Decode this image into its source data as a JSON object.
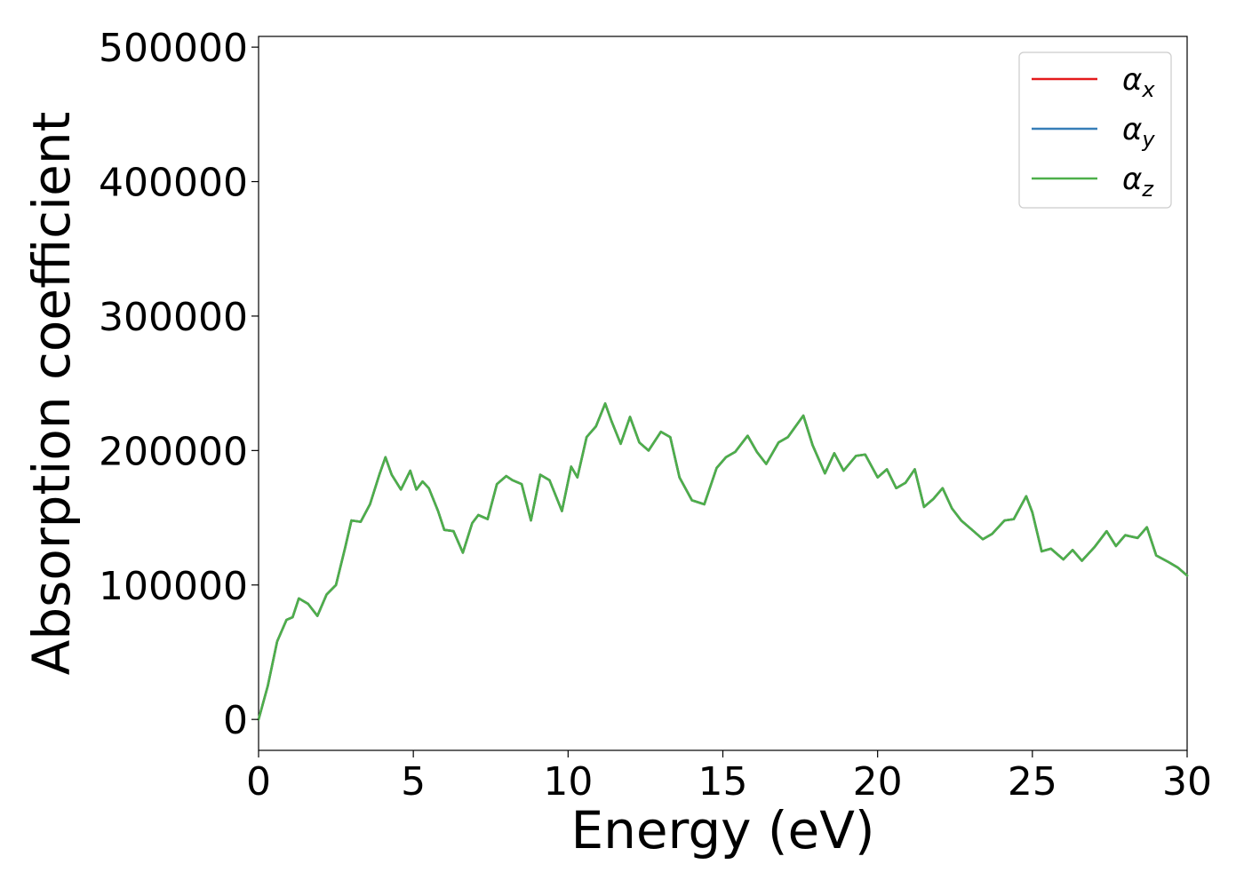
{
  "chart_data": {
    "type": "line",
    "title": "",
    "xlabel": "Energy (eV)",
    "ylabel": "Absorption coefficient",
    "xlim": [
      0,
      30
    ],
    "ylim": [
      -23000,
      508000
    ],
    "xticks": [
      0,
      5,
      10,
      15,
      20,
      25,
      30
    ],
    "xtick_labels": [
      "0",
      "5",
      "10",
      "15",
      "20",
      "25",
      "30"
    ],
    "yticks": [
      0,
      100000,
      200000,
      300000,
      400000,
      500000
    ],
    "ytick_labels": [
      "0",
      "100000",
      "200000",
      "300000",
      "400000",
      "500000"
    ],
    "grid": false,
    "legend_position": "top-right",
    "x": [
      0,
      0.3,
      0.6,
      0.9,
      1.1,
      1.3,
      1.6,
      1.9,
      2.2,
      2.5,
      2.8,
      3.0,
      3.3,
      3.6,
      3.9,
      4.1,
      4.3,
      4.6,
      4.9,
      5.1,
      5.3,
      5.5,
      5.8,
      6.0,
      6.3,
      6.6,
      6.9,
      7.1,
      7.4,
      7.7,
      8.0,
      8.2,
      8.5,
      8.8,
      9.1,
      9.4,
      9.8,
      10.1,
      10.3,
      10.6,
      10.9,
      11.2,
      11.4,
      11.7,
      12.0,
      12.3,
      12.6,
      13.0,
      13.3,
      13.6,
      14.0,
      14.4,
      14.8,
      15.1,
      15.4,
      15.8,
      16.1,
      16.4,
      16.8,
      17.1,
      17.6,
      17.9,
      18.3,
      18.6,
      18.9,
      19.3,
      19.6,
      20.0,
      20.3,
      20.6,
      20.9,
      21.2,
      21.5,
      21.8,
      22.1,
      22.4,
      22.7,
      23.1,
      23.4,
      23.7,
      24.1,
      24.4,
      24.8,
      25.0,
      25.3,
      25.6,
      26.0,
      26.3,
      26.6,
      27.0,
      27.4,
      27.7,
      28.0,
      28.4,
      28.7,
      29.0,
      29.4,
      29.7,
      30.0
    ],
    "series": [
      {
        "name": "α_x",
        "color": "#e41a1c",
        "y": [
          0,
          25000,
          58000,
          74000,
          76000,
          90000,
          86000,
          77000,
          93000,
          100000,
          128000,
          148000,
          147000,
          160000,
          182000,
          195000,
          182000,
          171000,
          185000,
          171000,
          177000,
          172000,
          155000,
          141000,
          140000,
          124000,
          146000,
          152000,
          149000,
          175000,
          181000,
          178000,
          175000,
          148000,
          182000,
          178000,
          155000,
          188000,
          180000,
          210000,
          218000,
          235000,
          222000,
          205000,
          225000,
          206000,
          200000,
          214000,
          210000,
          180000,
          163000,
          160000,
          187000,
          195000,
          199000,
          211000,
          199000,
          190000,
          206000,
          210000,
          226000,
          204000,
          183000,
          198000,
          185000,
          196000,
          197000,
          180000,
          186000,
          172000,
          176000,
          186000,
          158000,
          164000,
          172000,
          157000,
          148000,
          140000,
          134000,
          138000,
          148000,
          149000,
          166000,
          154000,
          125000,
          127000,
          119000,
          126000,
          118000,
          128000,
          140000,
          129000,
          137000,
          135000,
          143000,
          122000,
          117000,
          113000,
          107000
        ]
      },
      {
        "name": "α_y",
        "color": "#377eb8",
        "y": [
          0,
          25000,
          58000,
          74000,
          76000,
          90000,
          86000,
          77000,
          93000,
          100000,
          128000,
          148000,
          147000,
          160000,
          182000,
          195000,
          182000,
          171000,
          185000,
          171000,
          177000,
          172000,
          155000,
          141000,
          140000,
          124000,
          146000,
          152000,
          149000,
          175000,
          181000,
          178000,
          175000,
          148000,
          182000,
          178000,
          155000,
          188000,
          180000,
          210000,
          218000,
          235000,
          222000,
          205000,
          225000,
          206000,
          200000,
          214000,
          210000,
          180000,
          163000,
          160000,
          187000,
          195000,
          199000,
          211000,
          199000,
          190000,
          206000,
          210000,
          226000,
          204000,
          183000,
          198000,
          185000,
          196000,
          197000,
          180000,
          186000,
          172000,
          176000,
          186000,
          158000,
          164000,
          172000,
          157000,
          148000,
          140000,
          134000,
          138000,
          148000,
          149000,
          166000,
          154000,
          125000,
          127000,
          119000,
          126000,
          118000,
          128000,
          140000,
          129000,
          137000,
          135000,
          143000,
          122000,
          117000,
          113000,
          107000
        ]
      },
      {
        "name": "α_z",
        "color": "#4daf4a",
        "y": [
          0,
          25000,
          58000,
          74000,
          76000,
          90000,
          86000,
          77000,
          93000,
          100000,
          128000,
          148000,
          147000,
          160000,
          182000,
          195000,
          182000,
          171000,
          185000,
          171000,
          177000,
          172000,
          155000,
          141000,
          140000,
          124000,
          146000,
          152000,
          149000,
          175000,
          181000,
          178000,
          175000,
          148000,
          182000,
          178000,
          155000,
          188000,
          180000,
          210000,
          218000,
          235000,
          222000,
          205000,
          225000,
          206000,
          200000,
          214000,
          210000,
          180000,
          163000,
          160000,
          187000,
          195000,
          199000,
          211000,
          199000,
          190000,
          206000,
          210000,
          226000,
          204000,
          183000,
          198000,
          185000,
          196000,
          197000,
          180000,
          186000,
          172000,
          176000,
          186000,
          158000,
          164000,
          172000,
          157000,
          148000,
          140000,
          134000,
          138000,
          148000,
          149000,
          166000,
          154000,
          125000,
          127000,
          119000,
          126000,
          118000,
          128000,
          140000,
          129000,
          137000,
          135000,
          143000,
          122000,
          117000,
          113000,
          107000
        ]
      }
    ],
    "legend": [
      {
        "symbol": "α",
        "sub": "x",
        "color": "#e41a1c"
      },
      {
        "symbol": "α",
        "sub": "y",
        "color": "#377eb8"
      },
      {
        "symbol": "α",
        "sub": "z",
        "color": "#4daf4a"
      }
    ]
  }
}
